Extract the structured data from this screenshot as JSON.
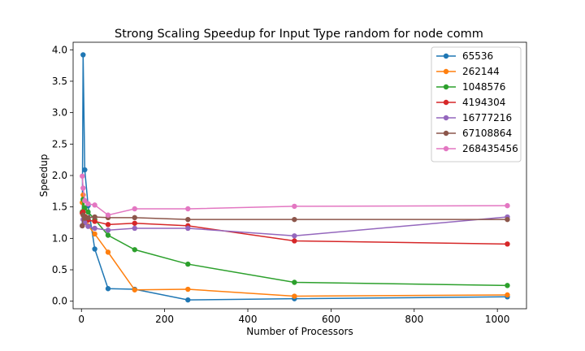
{
  "chart_data": {
    "type": "line",
    "title": "Strong Scaling Speedup for Input Type random for node comm",
    "xlabel": "Number of Processors",
    "ylabel": "Speedup",
    "xlim": [
      -20,
      1070
    ],
    "ylim": [
      -0.12,
      4.12
    ],
    "xticks": [
      0,
      200,
      400,
      600,
      800,
      1000
    ],
    "yticks": [
      0.0,
      0.5,
      1.0,
      1.5,
      2.0,
      2.5,
      3.0,
      3.5,
      4.0
    ],
    "xtick_labels": [
      "0",
      "200",
      "400",
      "600",
      "800",
      "1000"
    ],
    "ytick_labels": [
      "0.0",
      "0.5",
      "1.0",
      "1.5",
      "2.0",
      "2.5",
      "3.0",
      "3.5",
      "4.0"
    ],
    "grid": false,
    "legend_position": "top-right",
    "x": [
      2,
      4,
      8,
      16,
      32,
      64,
      128,
      256,
      512,
      1024
    ],
    "series": [
      {
        "name": "65536",
        "color": "#1f77b4",
        "values": [
          1.2,
          3.92,
          2.09,
          1.52,
          0.83,
          0.2,
          0.19,
          0.02,
          0.04,
          0.07
        ]
      },
      {
        "name": "262144",
        "color": "#ff7f0e",
        "values": [
          1.57,
          1.69,
          1.35,
          1.2,
          1.07,
          0.78,
          0.18,
          0.19,
          0.08,
          0.1
        ]
      },
      {
        "name": "1048576",
        "color": "#2ca02c",
        "values": [
          1.42,
          1.62,
          1.48,
          1.42,
          1.3,
          1.05,
          0.82,
          0.59,
          0.3,
          0.25
        ]
      },
      {
        "name": "4194304",
        "color": "#d62728",
        "values": [
          1.4,
          1.42,
          1.35,
          1.29,
          1.27,
          1.22,
          1.24,
          1.2,
          0.96,
          0.91
        ]
      },
      {
        "name": "16777216",
        "color": "#9467bd",
        "values": [
          1.2,
          1.3,
          1.25,
          1.19,
          1.16,
          1.13,
          1.16,
          1.16,
          1.04,
          1.34
        ]
      },
      {
        "name": "67108864",
        "color": "#8c564b",
        "values": [
          1.2,
          1.37,
          1.32,
          1.33,
          1.34,
          1.33,
          1.33,
          1.3,
          1.3,
          1.3
        ]
      },
      {
        "name": "268435456",
        "color": "#e377c2",
        "values": [
          1.99,
          1.8,
          1.6,
          1.55,
          1.53,
          1.37,
          1.47,
          1.47,
          1.51,
          1.52
        ]
      }
    ]
  }
}
